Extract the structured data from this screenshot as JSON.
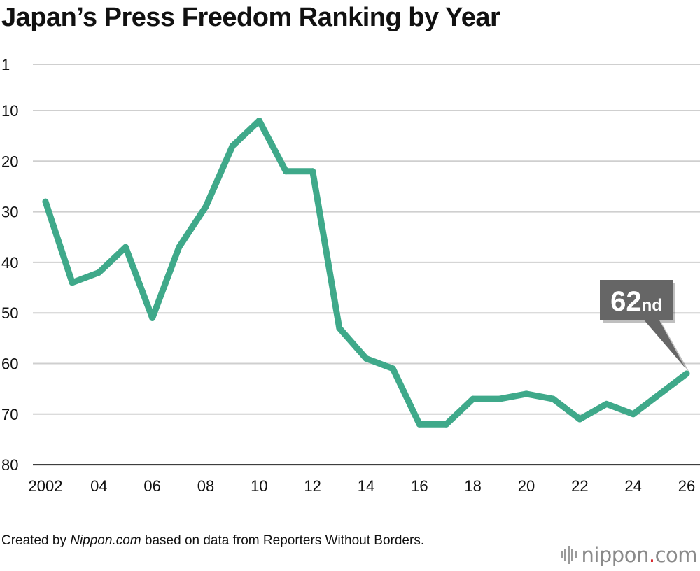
{
  "chart_data": {
    "type": "line",
    "title": "Japan’s Press Freedom Ranking by Year",
    "xlabel": "",
    "ylabel": "",
    "y_inverted": true,
    "ylim": [
      1,
      80
    ],
    "y_ticks": [
      "1",
      "10",
      "20",
      "30",
      "40",
      "50",
      "60",
      "70",
      "80"
    ],
    "x_range": [
      2002,
      2026
    ],
    "x_ticks": [
      {
        "year": 2002,
        "label": "2002"
      },
      {
        "year": 2004,
        "label": "04"
      },
      {
        "year": 2006,
        "label": "06"
      },
      {
        "year": 2008,
        "label": "08"
      },
      {
        "year": 2010,
        "label": "10"
      },
      {
        "year": 2012,
        "label": "12"
      },
      {
        "year": 2014,
        "label": "14"
      },
      {
        "year": 2016,
        "label": "16"
      },
      {
        "year": 2018,
        "label": "18"
      },
      {
        "year": 2020,
        "label": "20"
      },
      {
        "year": 2022,
        "label": "22"
      },
      {
        "year": 2024,
        "label": "24"
      },
      {
        "year": 2026,
        "label": "26"
      }
    ],
    "grid": true,
    "line_color": "#3fa98a",
    "x": [
      2002,
      2003,
      2004,
      2005,
      2006,
      2007,
      2008,
      2009,
      2010,
      2011,
      2012,
      2013,
      2014,
      2015,
      2016,
      2017,
      2018,
      2019,
      2020,
      2021,
      2022,
      2023,
      2024,
      2025,
      2026
    ],
    "values": [
      28,
      44,
      42,
      37,
      51,
      37,
      29,
      17,
      12,
      22,
      22,
      53,
      59,
      61,
      72,
      72,
      67,
      67,
      66,
      67,
      71,
      68,
      70,
      66,
      62
    ],
    "annotation": {
      "year": 2026,
      "rank_number": "62",
      "rank_suffix": "nd",
      "box_color": "#666666"
    }
  },
  "credit": {
    "prefix": "Created by ",
    "site": "Nippon.com",
    "suffix": " based on data from Reporters Without Borders."
  },
  "logo": {
    "word": "nippon",
    "dot": ".",
    "tld": "com"
  }
}
